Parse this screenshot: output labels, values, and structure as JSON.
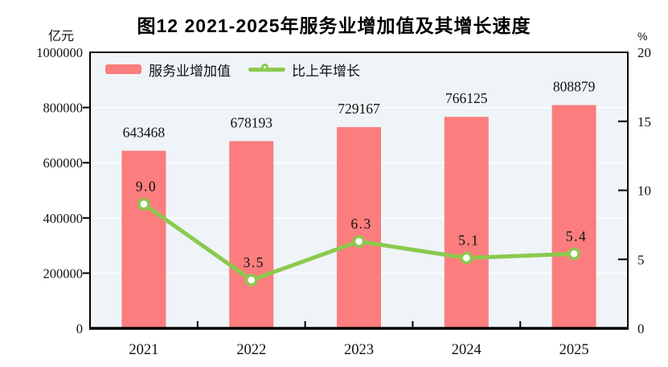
{
  "title": "图12  2021-2025年服务业增加值及其增长速度",
  "legend": {
    "bar_label": "服务业增加值",
    "line_label": "比上年增长"
  },
  "axes": {
    "left_unit": "亿元",
    "right_unit": "%"
  },
  "colors": {
    "bar": "#fb7d7d",
    "line": "#8cc94e",
    "marker_fill": "#ffffff",
    "plot_bg": "#eff4f8",
    "grid": "#fbfdfe",
    "border": "#000000",
    "text": "#111111"
  },
  "chart_data": {
    "type": "bar",
    "title": "图12  2021-2025年服务业增加值及其增长速度",
    "categories": [
      "2021",
      "2022",
      "2023",
      "2024",
      "2025"
    ],
    "series": [
      {
        "name": "服务业增加值",
        "type": "bar",
        "axis": "left",
        "values": [
          643468,
          678193,
          729167,
          766125,
          808879
        ],
        "value_labels": [
          "643468",
          "678193",
          "729167",
          "766125",
          "808879"
        ],
        "color": "#fb7d7d"
      },
      {
        "name": "比上年增长",
        "type": "line",
        "axis": "right",
        "values": [
          9.0,
          3.5,
          6.3,
          5.1,
          5.4
        ],
        "value_labels": [
          "9.0",
          "3.5",
          "6.3",
          "5.1",
          "5.4"
        ],
        "color": "#8cc94e"
      }
    ],
    "left_axis": {
      "label": "亿元",
      "min": 0,
      "max": 1000000,
      "ticks": [
        0,
        200000,
        400000,
        600000,
        800000,
        1000000
      ],
      "tick_labels": [
        "0",
        "200000",
        "400000",
        "600000",
        "800000",
        "1000000"
      ]
    },
    "right_axis": {
      "label": "%",
      "min": 0,
      "max": 20,
      "ticks": [
        0,
        5,
        10,
        15,
        20
      ],
      "tick_labels": [
        "0",
        "5",
        "10",
        "15",
        "20"
      ]
    },
    "legend_position": "top-left-inside",
    "grid": "horizontal"
  }
}
